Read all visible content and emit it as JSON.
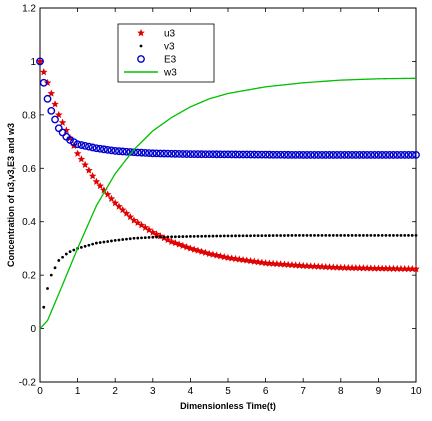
{
  "chart_data": {
    "type": "line",
    "xlabel": "Dimensionless Time(t)",
    "ylabel": "Concentration of u3,v3,E3 and w3",
    "xlim": [
      0,
      10
    ],
    "ylim": [
      -0.2,
      1.2
    ],
    "x_ticks": [
      "0",
      "1",
      "2",
      "3",
      "4",
      "5",
      "6",
      "7",
      "8",
      "9",
      "10"
    ],
    "y_ticks": [
      "-0.2",
      "0",
      "0.2",
      "0.4",
      "0.6",
      "0.8",
      "1",
      "1.2"
    ],
    "grid": false,
    "legend_position": "top-left-center",
    "series": [
      {
        "name": "u3",
        "marker": "star",
        "color": "#e00000",
        "x": [
          0,
          0.5,
          1,
          1.5,
          2,
          2.5,
          3,
          3.5,
          4,
          4.5,
          5,
          6,
          7,
          8,
          9,
          10
        ],
        "y": [
          1.0,
          0.8,
          0.655,
          0.55,
          0.47,
          0.405,
          0.36,
          0.325,
          0.3,
          0.28,
          0.265,
          0.245,
          0.235,
          0.228,
          0.225,
          0.223
        ]
      },
      {
        "name": "v3",
        "marker": "dot",
        "color": "#000000",
        "x": [
          0.1,
          0.2,
          0.3,
          0.5,
          0.75,
          1,
          1.5,
          2,
          2.5,
          3,
          4,
          5,
          6,
          7,
          8,
          9,
          10
        ],
        "y": [
          0.08,
          0.15,
          0.2,
          0.255,
          0.285,
          0.3,
          0.32,
          0.33,
          0.338,
          0.342,
          0.345,
          0.347,
          0.348,
          0.349,
          0.349,
          0.349,
          0.349
        ]
      },
      {
        "name": "E3",
        "marker": "circle",
        "color": "#0000d0",
        "x": [
          0,
          0.1,
          0.2,
          0.3,
          0.5,
          0.75,
          1,
          1.5,
          2,
          2.5,
          3,
          4,
          5,
          6,
          7,
          8,
          9,
          10
        ],
        "y": [
          1.0,
          0.92,
          0.86,
          0.815,
          0.75,
          0.71,
          0.69,
          0.675,
          0.665,
          0.66,
          0.656,
          0.653,
          0.652,
          0.651,
          0.65,
          0.65,
          0.65,
          0.65
        ]
      },
      {
        "name": "w3",
        "marker": "line",
        "color": "#00c000",
        "x": [
          0,
          0.2,
          0.5,
          1,
          1.5,
          2,
          2.5,
          3,
          3.5,
          4,
          4.5,
          5,
          6,
          7,
          8,
          9,
          10
        ],
        "y": [
          0.0,
          0.03,
          0.13,
          0.3,
          0.46,
          0.58,
          0.67,
          0.74,
          0.79,
          0.83,
          0.86,
          0.88,
          0.905,
          0.92,
          0.93,
          0.935,
          0.937
        ]
      }
    ]
  }
}
